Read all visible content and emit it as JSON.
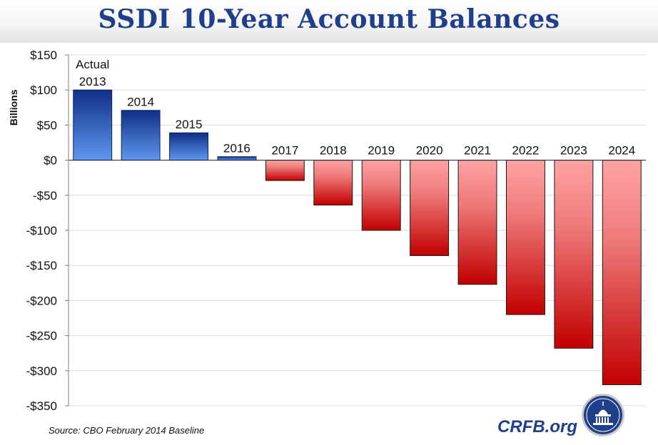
{
  "header": {
    "title": "SSDI 10-Year Account Balances"
  },
  "chart_data": {
    "type": "bar",
    "title": "SSDI 10-Year Account Balances",
    "ylabel": "Billions",
    "xlabel": "",
    "ylim": [
      -350,
      150
    ],
    "yticks": [
      150,
      100,
      50,
      0,
      -50,
      -100,
      -150,
      -200,
      -250,
      -300,
      -350
    ],
    "ytick_labels": [
      "$150",
      "$100",
      "$50",
      "$0",
      "-$50",
      "-$100",
      "-$150",
      "-$200",
      "-$250",
      "-$300",
      "-$350"
    ],
    "categories": [
      "2013",
      "2014",
      "2015",
      "2016",
      "2017",
      "2018",
      "2019",
      "2020",
      "2021",
      "2022",
      "2023",
      "2024"
    ],
    "values": [
      100,
      71,
      39,
      5,
      -29,
      -64,
      -100,
      -136,
      -177,
      -220,
      -268,
      -320
    ],
    "annotations": [
      {
        "category": "2013",
        "text": "Actual"
      }
    ],
    "grid": true,
    "colors": {
      "positive": "#1a3f99",
      "negative": "#c40000"
    }
  },
  "footer": {
    "source": "Source: CBO February 2014 Baseline",
    "brand": "CRFB.org"
  }
}
